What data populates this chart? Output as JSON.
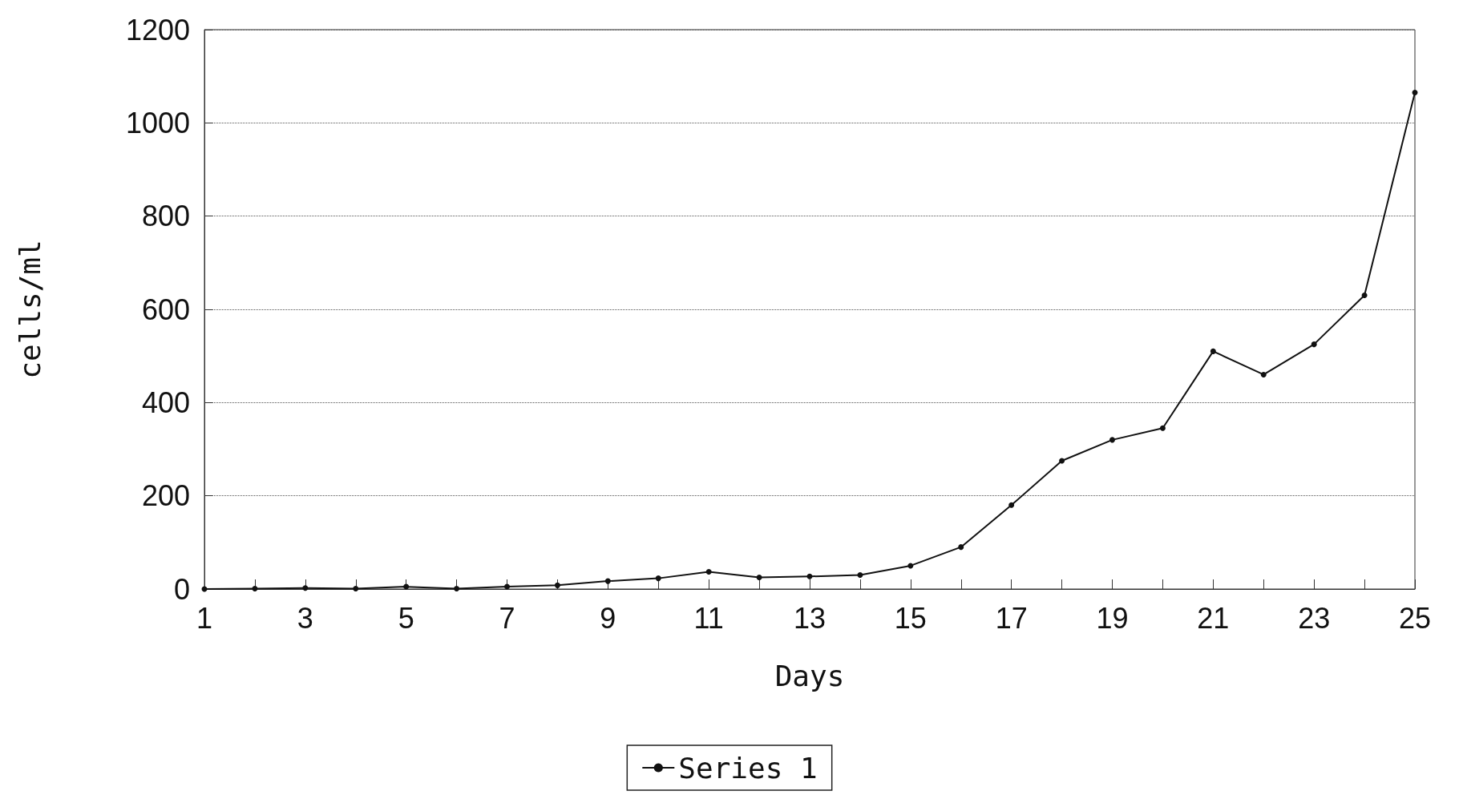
{
  "chart_data": {
    "type": "line",
    "xlabel": "Days",
    "ylabel": "cells/ml",
    "x": [
      1,
      2,
      3,
      4,
      5,
      6,
      7,
      8,
      9,
      10,
      11,
      12,
      13,
      14,
      15,
      16,
      17,
      18,
      19,
      20,
      21,
      22,
      23,
      24,
      25
    ],
    "series": [
      {
        "name": "Series 1",
        "color": "#111111",
        "values": [
          0,
          1,
          2,
          1,
          5,
          1,
          5,
          8,
          17,
          23,
          37,
          25,
          27,
          30,
          50,
          90,
          180,
          275,
          320,
          345,
          510,
          460,
          525,
          630,
          1065
        ]
      }
    ],
    "xlim": [
      1,
      25
    ],
    "xticks": [
      1,
      {
        "value": 2,
        "label": null
      },
      3,
      {
        "value": 4,
        "label": null
      },
      5,
      {
        "value": 6,
        "label": null
      },
      7,
      {
        "value": 8,
        "label": null
      },
      9,
      {
        "value": 10,
        "label": null
      },
      11,
      {
        "value": 12,
        "label": null
      },
      13,
      {
        "value": 14,
        "label": null
      },
      15,
      {
        "value": 16,
        "label": null
      },
      17,
      {
        "value": 18,
        "label": null
      },
      19,
      {
        "value": 20,
        "label": null
      },
      21,
      {
        "value": 22,
        "label": null
      },
      23,
      {
        "value": 24,
        "label": null
      },
      25
    ],
    "ylim": [
      0,
      1200
    ],
    "yticks": [
      0,
      200,
      400,
      600,
      800,
      1000,
      1200
    ],
    "grid": "y",
    "legend": "bottom",
    "marker": "circle",
    "line_style": "solid"
  }
}
